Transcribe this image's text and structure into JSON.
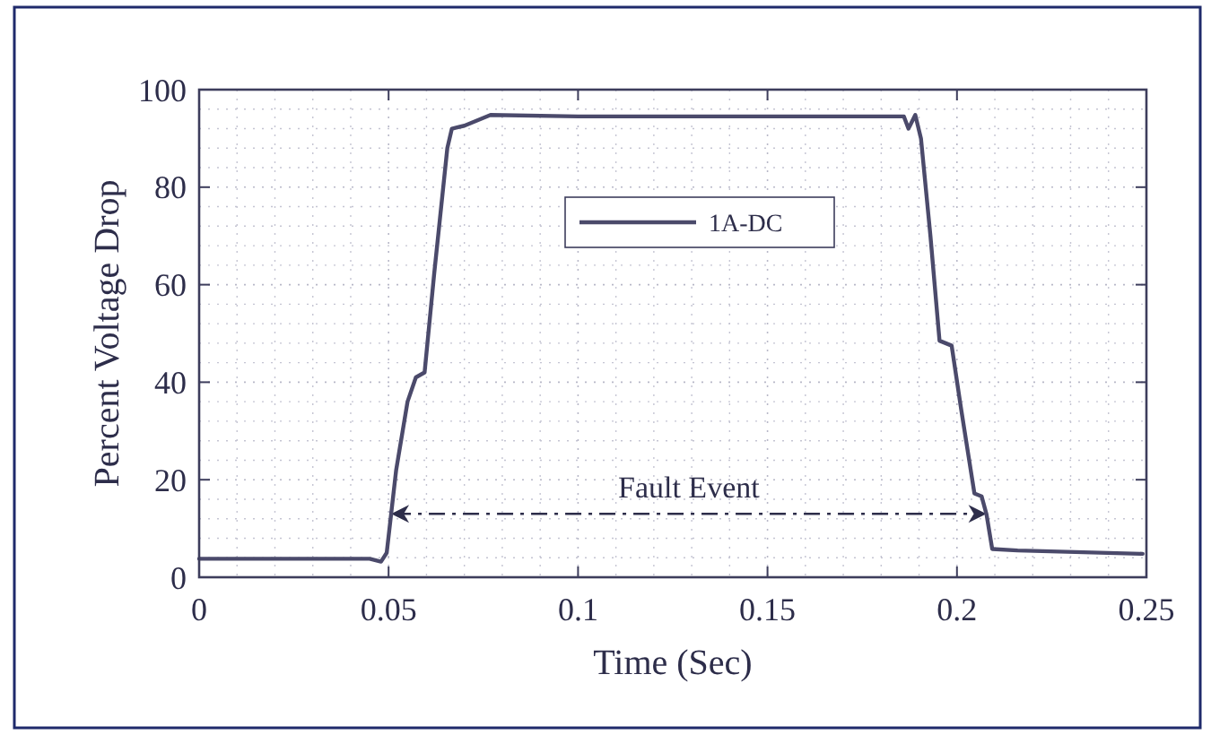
{
  "chart_data": {
    "type": "line",
    "xlabel": "Time (Sec)",
    "ylabel": "Percent Voltage Drop",
    "xlim": [
      0,
      0.25
    ],
    "xticks": [
      0,
      0.05,
      0.1,
      0.15,
      0.2,
      0.25
    ],
    "ylim": [
      0,
      100
    ],
    "yticks": [
      0,
      20,
      40,
      60,
      80,
      100
    ],
    "grid": true,
    "legend": "top",
    "marker": "none",
    "line_style": "solid",
    "series": [
      {
        "name": "1A-DC",
        "color": "#4b4a6b",
        "x": [
          0,
          0.02,
          0.045,
          0.048,
          0.0495,
          0.052,
          0.055,
          0.0572,
          0.0595,
          0.062,
          0.0655,
          0.0667,
          0.07,
          0.0769,
          0.1,
          0.15,
          0.186,
          0.1872,
          0.189,
          0.1905,
          0.193,
          0.1954,
          0.1986,
          0.201,
          0.2046,
          0.2065,
          0.2078,
          0.2093,
          0.216,
          0.249
        ],
        "values": [
          3.8,
          3.8,
          3.8,
          3.2,
          5,
          22,
          36,
          41,
          42,
          62,
          88,
          92,
          92.6,
          94.8,
          94.5,
          94.5,
          94.5,
          92,
          94.8,
          90,
          70,
          48.5,
          47.5,
          35,
          17.2,
          16.6,
          12.9,
          5.8,
          5.5,
          4.8
        ]
      }
    ],
    "annotations": [
      "Fault Event"
    ]
  }
}
